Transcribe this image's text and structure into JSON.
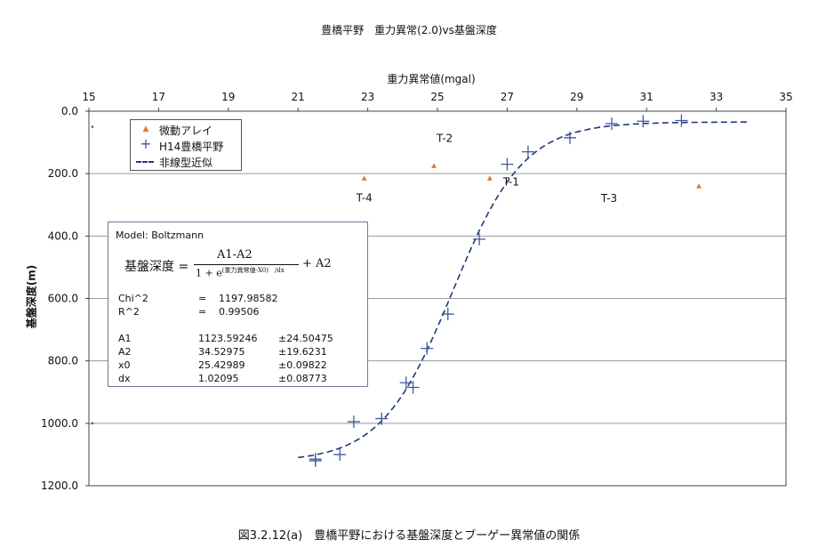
{
  "chart_data": {
    "type": "scatter",
    "title": "豊橋平野　重力異常(2.0)vs基盤深度",
    "xlabel": "重力異常値(mgal)",
    "ylabel": "基盤深度(m)",
    "xlim": [
      15,
      35
    ],
    "ylim": [
      0,
      1200
    ],
    "y_inverted": true,
    "x_ticks": [
      15,
      17,
      19,
      21,
      23,
      25,
      27,
      29,
      31,
      33,
      35
    ],
    "y_ticks": [
      0,
      200,
      400,
      600,
      800,
      1000,
      1200
    ],
    "y_tick_labels": [
      "0.0",
      "200.0",
      "400.0",
      "600.0",
      "800.0",
      "1000.0",
      "1200.0"
    ],
    "x_axis_position": "top",
    "grid": "horizontal",
    "legend_position": "top-left",
    "series": [
      {
        "name": "微動アレイ",
        "marker": "triangle",
        "color": "#e8753a",
        "points": [
          {
            "x": 22.9,
            "y": 215,
            "label": "T-4"
          },
          {
            "x": 24.9,
            "y": 175,
            "label": "T-2"
          },
          {
            "x": 26.5,
            "y": 215,
            "label": "T-1"
          },
          {
            "x": 32.5,
            "y": 240,
            "label": "T-3"
          }
        ]
      },
      {
        "name": "H14豊橋平野",
        "marker": "plus",
        "color": "#3f5a9e",
        "points": [
          {
            "x": 21.5,
            "y": 1115
          },
          {
            "x": 21.5,
            "y": 1120
          },
          {
            "x": 22.2,
            "y": 1100
          },
          {
            "x": 22.6,
            "y": 995
          },
          {
            "x": 23.4,
            "y": 985
          },
          {
            "x": 24.1,
            "y": 870
          },
          {
            "x": 24.3,
            "y": 885
          },
          {
            "x": 24.7,
            "y": 760
          },
          {
            "x": 25.3,
            "y": 650
          },
          {
            "x": 26.2,
            "y": 410
          },
          {
            "x": 27.0,
            "y": 170
          },
          {
            "x": 27.6,
            "y": 130
          },
          {
            "x": 28.8,
            "y": 85
          },
          {
            "x": 30.0,
            "y": 40
          },
          {
            "x": 30.9,
            "y": 32
          },
          {
            "x": 32.0,
            "y": 30
          }
        ]
      },
      {
        "name": "非線型近似",
        "type": "line",
        "style": "dashed",
        "color": "#1f3a7a",
        "model": "boltzmann",
        "x_range": [
          21.0,
          33.9
        ]
      }
    ],
    "edge_markers": [
      {
        "x": 15.1,
        "y": 50
      },
      {
        "x": 15.1,
        "y": 1000
      }
    ]
  },
  "fit_box": {
    "model": "Model: Boltzmann",
    "formula_lhs": "基盤深度 =",
    "formula_num": "A1-A2",
    "formula_den_base": "1 + e",
    "formula_den_exp": "(重力異常値-X0)　/dx",
    "formula_tail": "+ A2",
    "stats": [
      {
        "name": "Chi^2",
        "eq": "=",
        "value": "1197.98582"
      },
      {
        "name": "R^2",
        "eq": "=",
        "value": "0.99506"
      }
    ],
    "params": [
      {
        "name": "A1",
        "value": "1123.59246",
        "err": "±24.50475"
      },
      {
        "name": "A2",
        "value": "34.52975",
        "err": "±19.6231"
      },
      {
        "name": "x0",
        "value": "25.42989",
        "err": "±0.09822"
      },
      {
        "name": "dx",
        "value": "1.02095",
        "err": "±0.08773"
      }
    ]
  },
  "fit_params": {
    "A1": 1123.59246,
    "A2": 34.52975,
    "x0": 25.42989,
    "dx": 1.02095
  },
  "caption": "図3.2.12(a)　豊橋平野における基盤深度とブーゲー異常値の関係"
}
